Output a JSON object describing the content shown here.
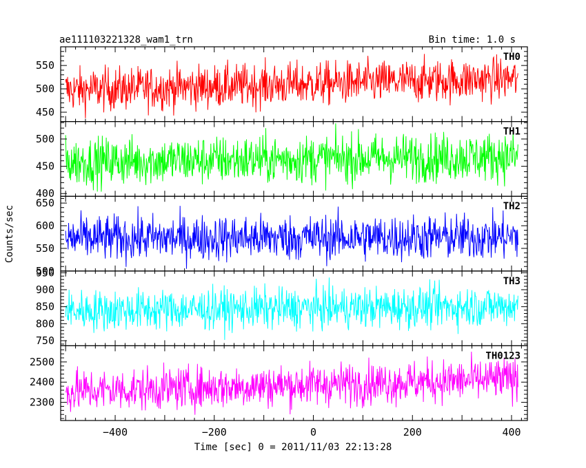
{
  "header": {
    "title": "ae111103221328_wam1_trn",
    "bin_time": "Bin time: 1.0 s"
  },
  "axes": {
    "ylabel": "Counts/sec",
    "xlabel": "Time [sec] 0 = 2011/11/03 22:13:28"
  },
  "chart_data": {
    "type": "line",
    "x_range": [
      -510,
      432
    ],
    "x_ticks": [
      -400,
      -200,
      0,
      200,
      400
    ],
    "x_tick_labels": [
      "−400",
      "−200",
      "0",
      "200",
      "400"
    ],
    "x_data_range": [
      -500,
      413
    ],
    "x_step": 1,
    "panels": [
      {
        "name": "TH0",
        "color": "#ff0000",
        "ylim": [
          430,
          590
        ],
        "yticks": [
          450,
          500,
          550
        ],
        "mean_start": 497,
        "mean_end": 522,
        "noise": 23
      },
      {
        "name": "TH1",
        "color": "#00ff00",
        "ylim": [
          395,
          532
        ],
        "yticks": [
          400,
          450,
          500
        ],
        "mean_start": 458,
        "mean_end": 468,
        "noise": 22
      },
      {
        "name": "TH2",
        "color": "#0000ff",
        "ylim": [
          500,
          665
        ],
        "yticks": [
          500,
          550,
          600,
          650
        ],
        "mean_start": 572,
        "mean_end": 575,
        "noise": 25
      },
      {
        "name": "TH3",
        "color": "#00ffff",
        "ylim": [
          735,
          955
        ],
        "yticks": [
          750,
          800,
          850,
          900,
          950
        ],
        "mean_start": 838,
        "mean_end": 852,
        "noise": 30
      },
      {
        "name": "TH0123",
        "color": "#ff00ff",
        "ylim": [
          2210,
          2580
        ],
        "yticks": [
          2300,
          2400,
          2500
        ],
        "mean_start": 2355,
        "mean_end": 2415,
        "noise": 52
      }
    ]
  }
}
